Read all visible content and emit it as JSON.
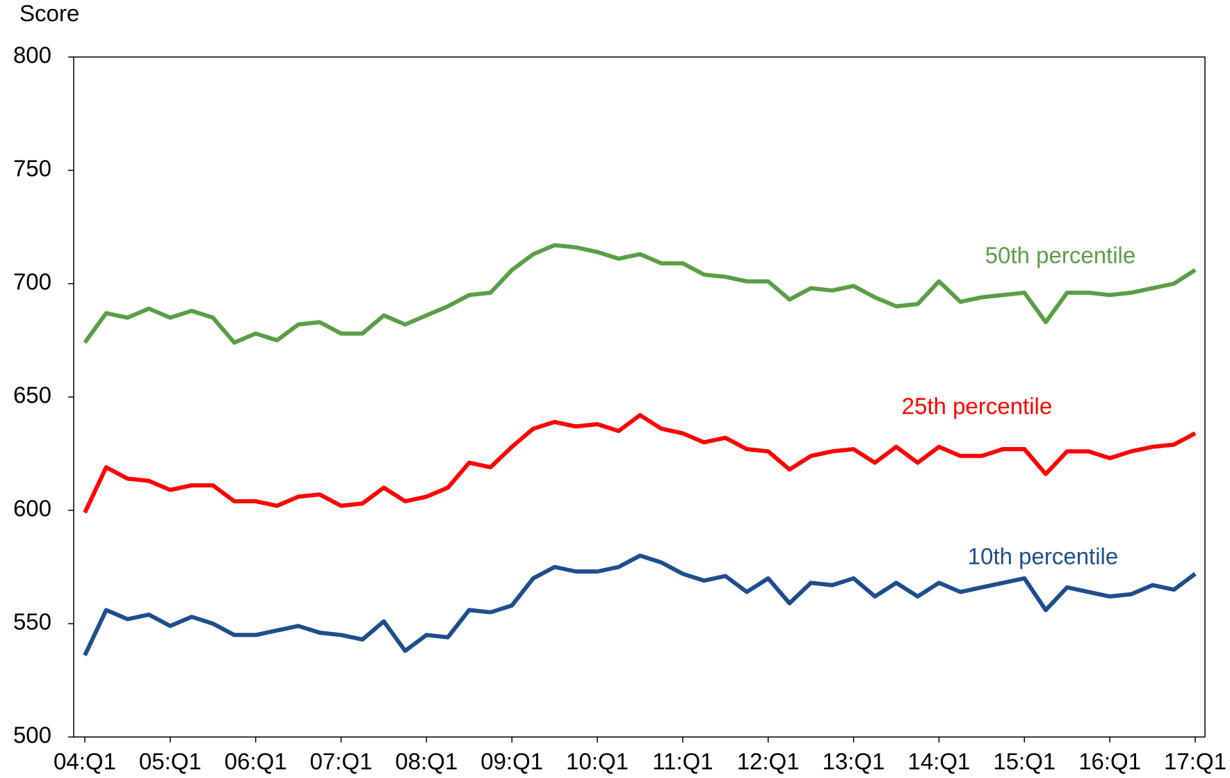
{
  "chart_data": {
    "type": "line",
    "y_label": "Score",
    "categories": [
      "04:Q1",
      null,
      null,
      null,
      "05:Q1",
      null,
      null,
      null,
      "06:Q1",
      null,
      null,
      null,
      "07:Q1",
      null,
      null,
      null,
      "08:Q1",
      null,
      null,
      null,
      "09:Q1",
      null,
      null,
      null,
      "10:Q1",
      null,
      null,
      null,
      "11:Q1",
      null,
      null,
      null,
      "12:Q1",
      null,
      null,
      null,
      "13:Q1",
      null,
      null,
      null,
      "14:Q1",
      null,
      null,
      null,
      "15:Q1",
      null,
      null,
      null,
      "16:Q1",
      null,
      null,
      null,
      "17:Q1"
    ],
    "series": [
      {
        "name": "50th percentile",
        "color": "#5a9e46",
        "values": [
          674,
          687,
          685,
          689,
          685,
          688,
          685,
          674,
          678,
          675,
          682,
          683,
          678,
          678,
          686,
          682,
          686,
          690,
          695,
          696,
          706,
          713,
          717,
          716,
          714,
          711,
          713,
          709,
          709,
          704,
          703,
          701,
          701,
          693,
          698,
          697,
          699,
          694,
          690,
          691,
          701,
          692,
          694,
          695,
          696,
          683,
          696,
          696,
          695,
          696,
          698,
          700,
          706
        ]
      },
      {
        "name": "25th percentile",
        "color": "#ff0000",
        "values": [
          599,
          619,
          614,
          613,
          609,
          611,
          611,
          604,
          604,
          602,
          606,
          607,
          602,
          603,
          610,
          604,
          606,
          610,
          621,
          619,
          628,
          636,
          639,
          637,
          638,
          635,
          642,
          636,
          634,
          630,
          632,
          627,
          626,
          618,
          624,
          626,
          627,
          621,
          628,
          621,
          628,
          624,
          624,
          627,
          627,
          616,
          626,
          626,
          623,
          626,
          628,
          629,
          634
        ]
      },
      {
        "name": "10th percentile",
        "color": "#1f4e8c",
        "values": [
          536,
          556,
          552,
          554,
          549,
          553,
          550,
          545,
          545,
          547,
          549,
          546,
          545,
          543,
          551,
          538,
          545,
          544,
          556,
          555,
          558,
          570,
          575,
          573,
          573,
          575,
          580,
          577,
          572,
          569,
          571,
          564,
          570,
          559,
          568,
          567,
          570,
          562,
          568,
          562,
          568,
          564,
          566,
          568,
          570,
          556,
          566,
          564,
          562,
          563,
          567,
          565,
          572
        ]
      }
    ],
    "ylim": [
      500,
      800
    ],
    "yticks": [
      500,
      550,
      600,
      650,
      700,
      750,
      800
    ],
    "grid": false
  }
}
